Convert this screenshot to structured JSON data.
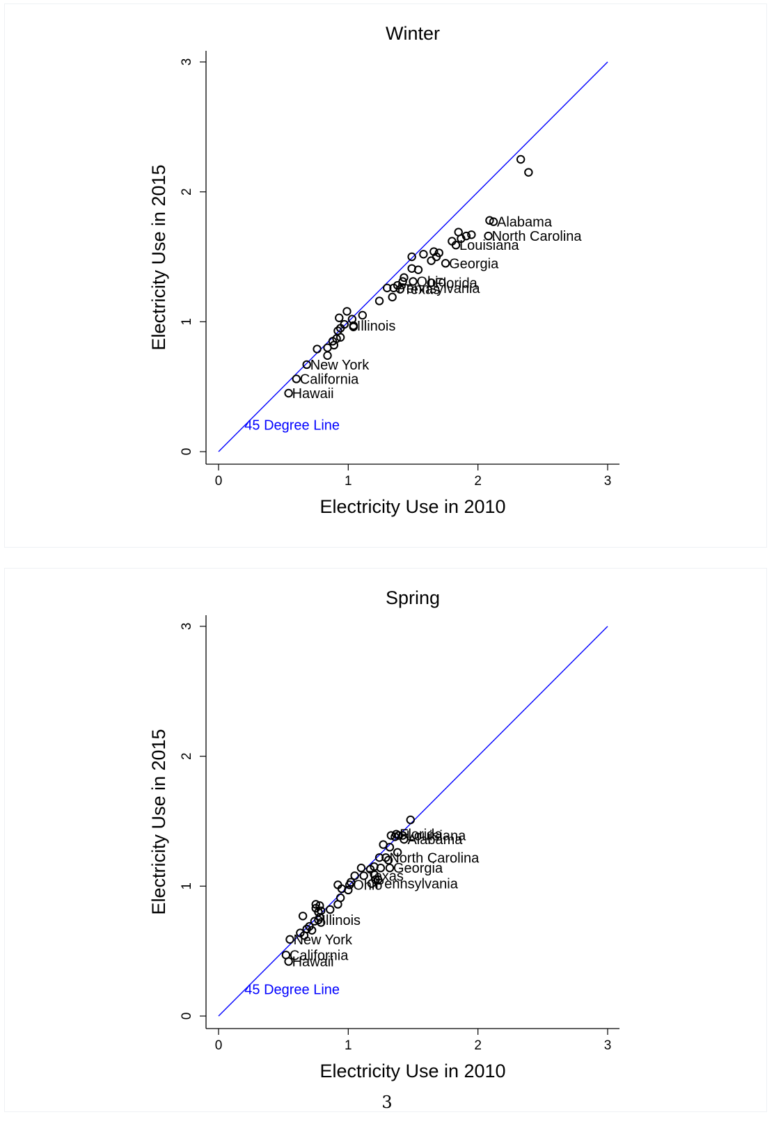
{
  "page_number": "3",
  "chart_data": [
    {
      "type": "scatter",
      "title": "Winter",
      "xlabel": "Electricity Use in 2010",
      "ylabel": "Electricity Use in 2015",
      "xlim": [
        0,
        3
      ],
      "ylim": [
        0,
        3
      ],
      "xticks": [
        "0",
        "1",
        "2",
        "3"
      ],
      "yticks": [
        "0",
        "1",
        "2",
        "3"
      ],
      "grid": false,
      "reference_line": {
        "label": "45 Degree Line",
        "from": [
          0,
          0
        ],
        "to": [
          3,
          3
        ],
        "color": "#0000ff"
      },
      "marker_color": "#000000",
      "labeled_points": [
        {
          "label": "Alabama",
          "x": 2.12,
          "y": 1.77
        },
        {
          "label": "North Carolina",
          "x": 2.08,
          "y": 1.66
        },
        {
          "label": "Louisiana",
          "x": 1.83,
          "y": 1.59
        },
        {
          "label": "Georgia",
          "x": 1.75,
          "y": 1.45
        },
        {
          "label": "Ohio",
          "x": 1.5,
          "y": 1.31
        },
        {
          "label": "Florida",
          "x": 1.64,
          "y": 1.3
        },
        {
          "label": "Pennsylvania",
          "x": 1.35,
          "y": 1.26
        },
        {
          "label": "Texas",
          "x": 1.4,
          "y": 1.25
        },
        {
          "label": "Illinois",
          "x": 1.04,
          "y": 0.97
        },
        {
          "label": "New York",
          "x": 0.68,
          "y": 0.67
        },
        {
          "label": "California",
          "x": 0.6,
          "y": 0.56
        },
        {
          "label": "Hawaii",
          "x": 0.54,
          "y": 0.45
        }
      ],
      "other_points": [
        [
          2.33,
          2.25
        ],
        [
          2.39,
          2.15
        ],
        [
          2.09,
          1.78
        ],
        [
          1.95,
          1.67
        ],
        [
          1.91,
          1.66
        ],
        [
          1.85,
          1.69
        ],
        [
          1.87,
          1.64
        ],
        [
          1.8,
          1.62
        ],
        [
          1.7,
          1.53
        ],
        [
          1.66,
          1.54
        ],
        [
          1.68,
          1.5
        ],
        [
          1.64,
          1.47
        ],
        [
          1.58,
          1.52
        ],
        [
          1.49,
          1.5
        ],
        [
          1.54,
          1.4
        ],
        [
          1.49,
          1.41
        ],
        [
          1.43,
          1.34
        ],
        [
          1.42,
          1.31
        ],
        [
          1.38,
          1.28
        ],
        [
          1.3,
          1.26
        ],
        [
          1.34,
          1.19
        ],
        [
          1.24,
          1.16
        ],
        [
          1.11,
          1.05
        ],
        [
          0.99,
          1.08
        ],
        [
          0.93,
          1.03
        ],
        [
          1.03,
          1.02
        ],
        [
          0.97,
          0.98
        ],
        [
          1.04,
          0.96
        ],
        [
          0.94,
          0.95
        ],
        [
          0.92,
          0.93
        ],
        [
          0.94,
          0.88
        ],
        [
          0.91,
          0.87
        ],
        [
          0.88,
          0.85
        ],
        [
          0.89,
          0.82
        ],
        [
          0.84,
          0.8
        ],
        [
          0.76,
          0.79
        ],
        [
          0.84,
          0.74
        ]
      ]
    },
    {
      "type": "scatter",
      "title": "Spring",
      "xlabel": "Electricity Use in 2010",
      "ylabel": "Electricity Use in 2015",
      "xlim": [
        0,
        3
      ],
      "ylim": [
        0,
        3
      ],
      "xticks": [
        "0",
        "1",
        "2",
        "3"
      ],
      "yticks": [
        "0",
        "1",
        "2",
        "3"
      ],
      "grid": false,
      "reference_line": {
        "label": "45 Degree Line",
        "from": [
          0,
          0
        ],
        "to": [
          3,
          3
        ],
        "color": "#0000ff"
      },
      "marker_color": "#000000",
      "labeled_points": [
        {
          "label": "Louisiana",
          "x": 1.42,
          "y": 1.39
        },
        {
          "label": "Florida",
          "x": 1.37,
          "y": 1.4
        },
        {
          "label": "Alabama",
          "x": 1.43,
          "y": 1.36
        },
        {
          "label": "North Carolina",
          "x": 1.29,
          "y": 1.22
        },
        {
          "label": "Georgia",
          "x": 1.32,
          "y": 1.14
        },
        {
          "label": "Texas",
          "x": 1.12,
          "y": 1.08
        },
        {
          "label": "Ohio",
          "x": 1.01,
          "y": 1.01
        },
        {
          "label": "Pennsylvania",
          "x": 1.18,
          "y": 1.02
        },
        {
          "label": "Illinois",
          "x": 0.77,
          "y": 0.74
        },
        {
          "label": "New York",
          "x": 0.55,
          "y": 0.59
        },
        {
          "label": "California",
          "x": 0.52,
          "y": 0.47
        },
        {
          "label": "Hawaii",
          "x": 0.54,
          "y": 0.42
        }
      ],
      "other_points": [
        [
          1.48,
          1.51
        ],
        [
          1.33,
          1.39
        ],
        [
          1.39,
          1.39
        ],
        [
          1.36,
          1.38
        ],
        [
          1.27,
          1.32
        ],
        [
          1.32,
          1.3
        ],
        [
          1.38,
          1.26
        ],
        [
          1.24,
          1.22
        ],
        [
          1.31,
          1.2
        ],
        [
          1.2,
          1.15
        ],
        [
          1.25,
          1.14
        ],
        [
          1.17,
          1.13
        ],
        [
          1.1,
          1.14
        ],
        [
          1.2,
          1.09
        ],
        [
          1.05,
          1.08
        ],
        [
          1.23,
          1.05
        ],
        [
          1.21,
          1.05
        ],
        [
          1.02,
          1.03
        ],
        [
          0.92,
          1.01
        ],
        [
          0.95,
          0.98
        ],
        [
          1.0,
          0.97
        ],
        [
          0.94,
          0.91
        ],
        [
          0.92,
          0.86
        ],
        [
          0.86,
          0.82
        ],
        [
          0.75,
          0.86
        ],
        [
          0.78,
          0.85
        ],
        [
          0.75,
          0.83
        ],
        [
          0.79,
          0.81
        ],
        [
          0.77,
          0.8
        ],
        [
          0.65,
          0.77
        ],
        [
          0.78,
          0.76
        ],
        [
          0.74,
          0.73
        ],
        [
          0.79,
          0.72
        ],
        [
          0.7,
          0.69
        ],
        [
          0.68,
          0.67
        ],
        [
          0.72,
          0.66
        ],
        [
          0.63,
          0.64
        ],
        [
          0.66,
          0.62
        ]
      ]
    }
  ]
}
